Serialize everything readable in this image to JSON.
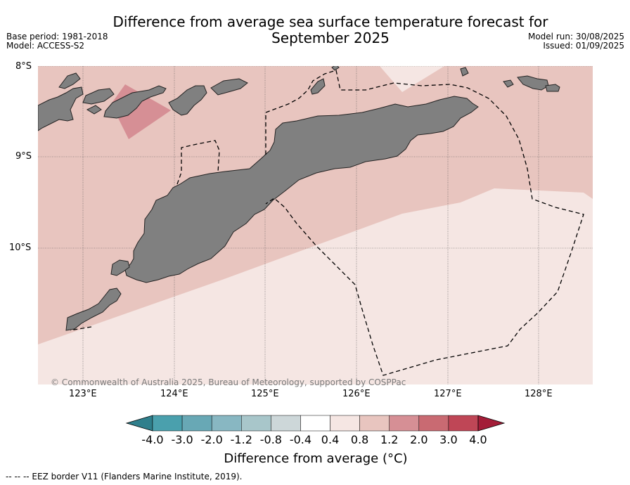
{
  "title_line1": "Difference from average sea surface temperature forecast for",
  "title_line2": "September 2025",
  "base_period": "Base period: 1981-2018",
  "model": "Model: ACCESS-S2",
  "model_run": "Model run: 30/08/2025",
  "issued": "Issued: 01/09/2025",
  "lat_labels": [
    "8°S",
    "9°S",
    "10°S"
  ],
  "lon_labels": [
    "123°E",
    "124°E",
    "125°E",
    "126°E",
    "127°E",
    "128°E"
  ],
  "copyright": "© Commonwealth of Australia 2025, Bureau of Meteorology, supported by COSPPac",
  "colorbar": {
    "ticks": [
      "-4.0",
      "-3.0",
      "-2.0",
      "-1.2",
      "-0.8",
      "-0.4",
      "0.4",
      "0.8",
      "1.2",
      "2.0",
      "3.0",
      "4.0"
    ],
    "colors": [
      "#2f7f8c",
      "#4aa0ad",
      "#68a8b5",
      "#88b7c2",
      "#a8c6ca",
      "#cdd7d9",
      "#ffffff",
      "#f5e6e3",
      "#e8c5bf",
      "#d68f95",
      "#c96a72",
      "#bf4656",
      "#a31d38"
    ],
    "label": "Difference from average (°C)"
  },
  "legend_footer": "--  --  -- EEZ border V11 (Flanders Marine Institute, 2019).",
  "map_colors": {
    "anomaly_0.8_1.2": "#e8c5bf",
    "anomaly_0.4_0.8": "#f5e6e3",
    "anomaly_1.2_2.0": "#d68f95",
    "land": "#808080"
  }
}
